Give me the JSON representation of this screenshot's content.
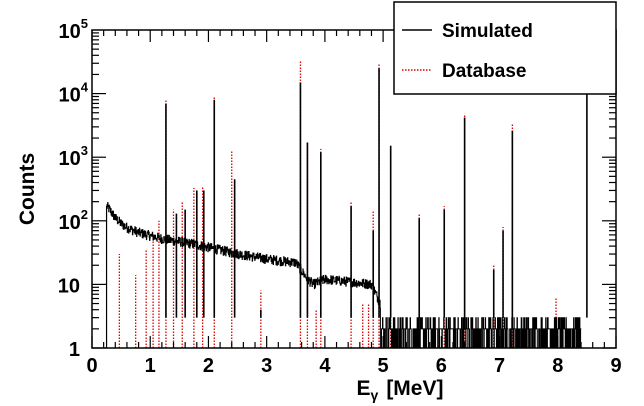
{
  "chart_data": {
    "type": "line",
    "xlabel_main": "E",
    "xlabel_sub": "γ",
    "xlabel_unit": "[MeV]",
    "ylabel": "Counts",
    "xlim": [
      0,
      9
    ],
    "ylim": [
      1,
      100000
    ],
    "y_scale": "log",
    "x_ticks": [
      0,
      1,
      2,
      3,
      4,
      5,
      6,
      7,
      8,
      9
    ],
    "y_ticks": [
      {
        "value": 1,
        "base": "1",
        "exp": ""
      },
      {
        "value": 10,
        "base": "10",
        "exp": ""
      },
      {
        "value": 100,
        "base": "10",
        "exp": "2"
      },
      {
        "value": 1000,
        "base": "10",
        "exp": "3"
      },
      {
        "value": 10000,
        "base": "10",
        "exp": "4"
      },
      {
        "value": 100000,
        "base": "10",
        "exp": "5"
      }
    ],
    "legend": {
      "position": "top-right",
      "entries": [
        {
          "name": "Simulated",
          "color": "#000000",
          "style": "solid"
        },
        {
          "name": "Database",
          "color": "#e00000",
          "style": "dotted"
        }
      ]
    },
    "series": [
      {
        "name": "Simulated",
        "color": "#000000",
        "continuum": [
          [
            0.25,
            170
          ],
          [
            0.3,
            150
          ],
          [
            0.4,
            110
          ],
          [
            0.5,
            90
          ],
          [
            0.6,
            78
          ],
          [
            0.8,
            65
          ],
          [
            1.0,
            58
          ],
          [
            1.2,
            52
          ],
          [
            1.5,
            47
          ],
          [
            1.8,
            42
          ],
          [
            2.0,
            38
          ],
          [
            2.3,
            33
          ],
          [
            2.6,
            29
          ],
          [
            3.0,
            25
          ],
          [
            3.3,
            23
          ],
          [
            3.5,
            22
          ],
          [
            3.7,
            12
          ],
          [
            3.8,
            10
          ],
          [
            4.0,
            12
          ],
          [
            4.4,
            11
          ],
          [
            4.8,
            10
          ],
          [
            4.95,
            5
          ],
          [
            5.2,
            2.2
          ],
          [
            6.0,
            2.2
          ],
          [
            7.0,
            2.2
          ],
          [
            8.0,
            2.2
          ],
          [
            8.4,
            2.2
          ]
        ],
        "peaks": [
          [
            1.27,
            7000
          ],
          [
            1.45,
            130
          ],
          [
            1.6,
            150
          ],
          [
            1.8,
            300
          ],
          [
            1.92,
            300
          ],
          [
            2.1,
            8000
          ],
          [
            2.45,
            450
          ],
          [
            2.9,
            4
          ],
          [
            3.58,
            15000
          ],
          [
            3.7,
            1700
          ],
          [
            3.93,
            1200
          ],
          [
            4.45,
            170
          ],
          [
            4.83,
            70
          ],
          [
            4.93,
            25000
          ],
          [
            5.13,
            1500
          ],
          [
            5.62,
            110
          ],
          [
            6.05,
            150
          ],
          [
            6.4,
            4200
          ],
          [
            6.9,
            17
          ],
          [
            7.06,
            70
          ],
          [
            7.22,
            2600
          ],
          [
            8.5,
            18000
          ]
        ]
      },
      {
        "name": "Database",
        "color": "#e00000",
        "peaks": [
          [
            0.47,
            30
          ],
          [
            0.75,
            14
          ],
          [
            0.93,
            35
          ],
          [
            1.05,
            60
          ],
          [
            1.15,
            100
          ],
          [
            1.27,
            8000
          ],
          [
            1.4,
            150
          ],
          [
            1.55,
            200
          ],
          [
            1.75,
            330
          ],
          [
            1.9,
            350
          ],
          [
            2.1,
            9000
          ],
          [
            2.4,
            1300
          ],
          [
            2.9,
            8
          ],
          [
            3.58,
            32000
          ],
          [
            3.7,
            1800
          ],
          [
            3.85,
            4
          ],
          [
            3.93,
            1350
          ],
          [
            4.45,
            200
          ],
          [
            4.65,
            5
          ],
          [
            4.75,
            5
          ],
          [
            4.83,
            140
          ],
          [
            4.93,
            30000
          ],
          [
            5.13,
            1600
          ],
          [
            5.62,
            130
          ],
          [
            6.05,
            170
          ],
          [
            6.4,
            4800
          ],
          [
            6.9,
            20
          ],
          [
            7.06,
            80
          ],
          [
            7.22,
            3300
          ],
          [
            7.97,
            6
          ],
          [
            8.5,
            1
          ]
        ]
      }
    ]
  }
}
